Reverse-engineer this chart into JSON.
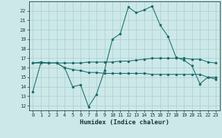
{
  "xlabel": "Humidex (Indice chaleur)",
  "background_color": "#cce8e8",
  "grid_color": "#aacccc",
  "line_color": "#1a6b6b",
  "xlim": [
    -0.5,
    23.5
  ],
  "ylim": [
    11.5,
    23.0
  ],
  "xticks": [
    0,
    1,
    2,
    3,
    4,
    5,
    6,
    7,
    8,
    9,
    10,
    11,
    12,
    13,
    14,
    15,
    16,
    17,
    18,
    19,
    20,
    21,
    22,
    23
  ],
  "yticks": [
    12,
    13,
    14,
    15,
    16,
    17,
    18,
    19,
    20,
    21,
    22
  ],
  "line1_x": [
    0,
    1,
    2,
    3,
    4,
    5,
    6,
    7,
    8,
    9,
    10,
    11,
    12,
    13,
    14,
    15,
    16,
    17,
    18,
    19,
    20,
    21,
    22,
    23
  ],
  "line1_y": [
    13.5,
    16.5,
    16.5,
    16.5,
    16.0,
    14.0,
    14.2,
    11.9,
    13.2,
    15.7,
    19.0,
    19.6,
    22.4,
    21.8,
    22.1,
    22.5,
    20.5,
    19.3,
    17.1,
    16.8,
    16.2,
    14.3,
    15.0,
    14.8
  ],
  "line2_x": [
    0,
    1,
    2,
    3,
    4,
    5,
    6,
    7,
    8,
    9,
    10,
    11,
    12,
    13,
    14,
    15,
    16,
    17,
    18,
    19,
    20,
    21,
    22,
    23
  ],
  "line2_y": [
    16.5,
    16.6,
    16.5,
    16.5,
    16.5,
    16.5,
    16.5,
    16.6,
    16.6,
    16.6,
    16.6,
    16.7,
    16.7,
    16.8,
    16.9,
    17.0,
    17.0,
    17.0,
    17.0,
    17.0,
    16.9,
    16.9,
    16.6,
    16.5
  ],
  "line3_x": [
    0,
    1,
    2,
    3,
    4,
    5,
    6,
    7,
    8,
    9,
    10,
    11,
    12,
    13,
    14,
    15,
    16,
    17,
    18,
    19,
    20,
    21,
    22,
    23
  ],
  "line3_y": [
    16.5,
    16.5,
    16.5,
    16.5,
    16.0,
    15.8,
    15.7,
    15.5,
    15.5,
    15.4,
    15.4,
    15.4,
    15.4,
    15.4,
    15.4,
    15.3,
    15.3,
    15.3,
    15.3,
    15.3,
    15.3,
    15.3,
    15.0,
    15.0
  ]
}
